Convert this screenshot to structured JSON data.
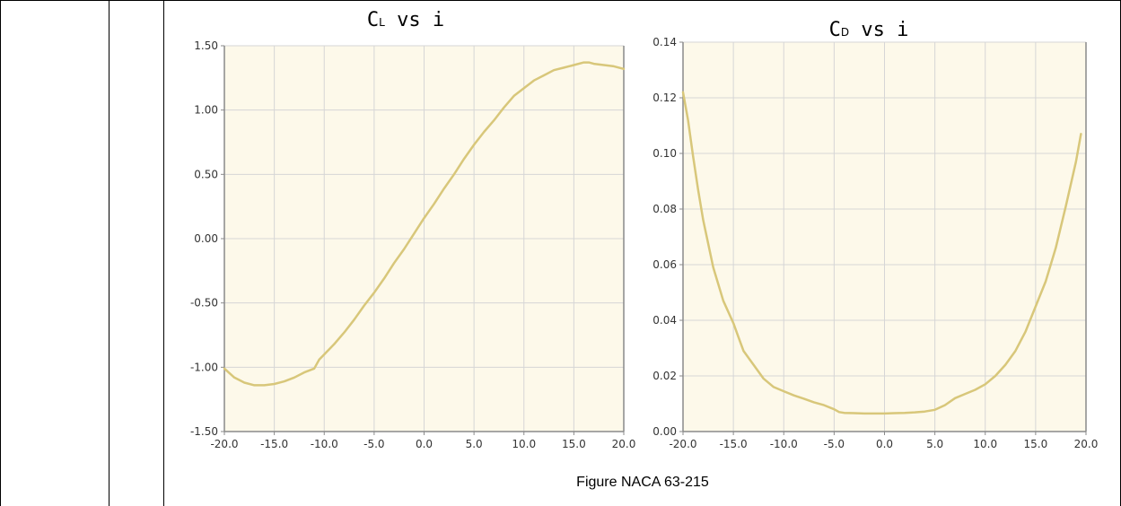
{
  "caption": "Figure NACA 63-215",
  "colors": {
    "plot_bg": "#fdf9ea",
    "grid": "#d6d6d6",
    "axis": "#8a8a8a",
    "line": "#d8c77a"
  },
  "chart_data": [
    {
      "type": "line",
      "title": {
        "main": "C",
        "sub": "L",
        "rest": " vs i"
      },
      "xlim": [
        -20,
        20
      ],
      "ylim": [
        -1.5,
        1.5
      ],
      "x_ticks": [
        -20,
        -15,
        -10,
        -5,
        0,
        5,
        10,
        15,
        20
      ],
      "y_ticks": [
        -1.5,
        -1.0,
        -0.5,
        0.0,
        0.5,
        1.0,
        1.5
      ],
      "x_tick_labels": [
        "-20.0",
        "-15.0",
        "-10.0",
        "-5.0",
        "0.0",
        "5.0",
        "10.0",
        "15.0",
        "20.0"
      ],
      "y_tick_labels": [
        "-1.50",
        "-1.00",
        "-0.50",
        "0.00",
        "0.50",
        "1.00",
        "1.50"
      ],
      "grid": true,
      "series": [
        {
          "x": [
            -20,
            -19,
            -18,
            -17,
            -16,
            -15,
            -14,
            -13,
            -12,
            -11,
            -10.5,
            -10,
            -9,
            -8,
            -7,
            -6,
            -5,
            -4,
            -3,
            -2,
            -1,
            0,
            1,
            2,
            3,
            4,
            5,
            6,
            7,
            8,
            9,
            10,
            11,
            12,
            13,
            14,
            15,
            16,
            16.5,
            17,
            18,
            19,
            20
          ],
          "y": [
            -1.01,
            -1.08,
            -1.12,
            -1.14,
            -1.14,
            -1.13,
            -1.11,
            -1.08,
            -1.04,
            -1.01,
            -0.94,
            -0.9,
            -0.82,
            -0.73,
            -0.63,
            -0.52,
            -0.42,
            -0.31,
            -0.19,
            -0.08,
            0.04,
            0.16,
            0.27,
            0.39,
            0.5,
            0.62,
            0.73,
            0.83,
            0.92,
            1.02,
            1.11,
            1.17,
            1.23,
            1.27,
            1.31,
            1.33,
            1.35,
            1.37,
            1.37,
            1.36,
            1.35,
            1.34,
            1.32
          ]
        }
      ]
    },
    {
      "type": "line",
      "title": {
        "main": "C",
        "sub": "D",
        "rest": " vs i"
      },
      "xlim": [
        -20,
        20
      ],
      "ylim": [
        0,
        0.14
      ],
      "x_ticks": [
        -20,
        -15,
        -10,
        -5,
        0,
        5,
        10,
        15,
        20
      ],
      "y_ticks": [
        0,
        0.02,
        0.04,
        0.06,
        0.08,
        0.1,
        0.12,
        0.14
      ],
      "x_tick_labels": [
        "-20.0",
        "-15.0",
        "-10.0",
        "-5.0",
        "0.0",
        "5.0",
        "10.0",
        "15.0",
        "20.0"
      ],
      "y_tick_labels": [
        "0.00",
        "0.02",
        "0.04",
        "0.06",
        "0.08",
        "0.10",
        "0.12",
        "0.14"
      ],
      "grid": true,
      "series": [
        {
          "x": [
            -20,
            -19.5,
            -19,
            -18.5,
            -18,
            -17,
            -16,
            -15,
            -14.5,
            -14,
            -13,
            -12,
            -11,
            -10,
            -9,
            -8,
            -7,
            -6,
            -5,
            -4.5,
            -4,
            -3,
            -2,
            -1,
            0,
            1,
            2,
            3,
            4,
            5,
            6,
            7,
            8,
            9,
            10,
            11,
            12,
            13,
            14,
            15,
            16,
            17,
            18,
            19,
            19.5
          ],
          "y": [
            0.122,
            0.112,
            0.099,
            0.087,
            0.076,
            0.059,
            0.047,
            0.039,
            0.034,
            0.029,
            0.024,
            0.019,
            0.016,
            0.0145,
            0.013,
            0.0118,
            0.0105,
            0.0095,
            0.008,
            0.007,
            0.0067,
            0.0066,
            0.0065,
            0.0065,
            0.0065,
            0.0066,
            0.0067,
            0.0069,
            0.0072,
            0.0078,
            0.0095,
            0.012,
            0.0135,
            0.015,
            0.017,
            0.02,
            0.024,
            0.029,
            0.036,
            0.045,
            0.054,
            0.066,
            0.081,
            0.097,
            0.107
          ]
        }
      ]
    }
  ]
}
